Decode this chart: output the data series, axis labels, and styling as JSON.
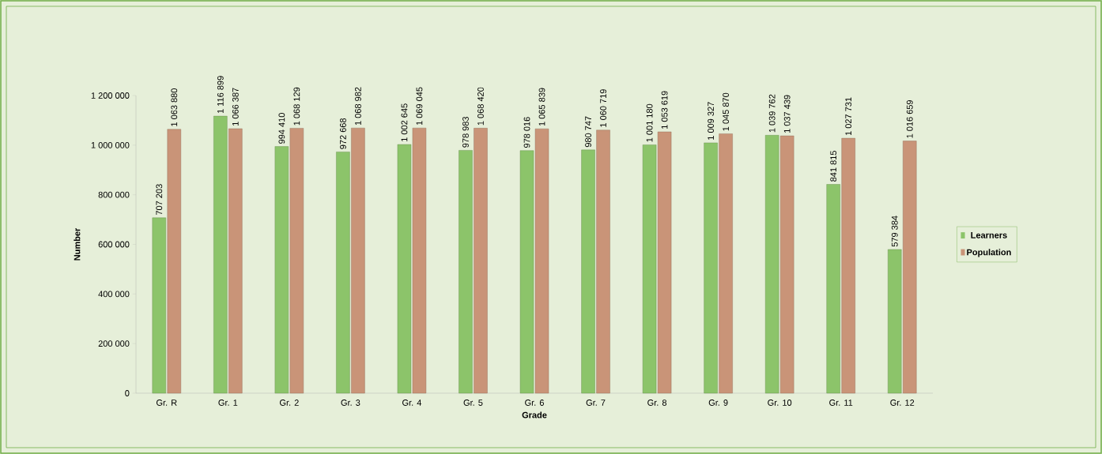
{
  "chart_data": {
    "type": "bar",
    "xlabel": "Grade",
    "ylabel": "Number",
    "categories": [
      "Gr. R",
      "Gr. 1",
      "Gr. 2",
      "Gr. 3",
      "Gr. 4",
      "Gr. 5",
      "Gr. 6",
      "Gr. 7",
      "Gr. 8",
      "Gr. 9",
      "Gr. 10",
      "Gr. 11",
      "Gr. 12"
    ],
    "series": [
      {
        "name": "Learners",
        "color": "#8cc46a",
        "values": [
          707203,
          1116899,
          994410,
          972668,
          1002645,
          978983,
          978016,
          980747,
          1001180,
          1009327,
          1039762,
          841815,
          579384
        ],
        "value_labels": [
          "707 203",
          "1 116 899",
          "994 410",
          "972 668",
          "1 002 645",
          "978 983",
          "978 016",
          "980 747",
          "1 001 180",
          "1 009 327",
          "1 039 762",
          "841 815",
          "579 384"
        ]
      },
      {
        "name": "Population",
        "color": "#c99478",
        "values": [
          1063880,
          1066387,
          1068129,
          1068982,
          1069045,
          1068420,
          1065839,
          1060719,
          1053619,
          1045870,
          1037439,
          1027731,
          1016659
        ],
        "value_labels": [
          "1 063 880",
          "1 066 387",
          "1 068 129",
          "1 068 982",
          "1 069 045",
          "1 068 420",
          "1 065 839",
          "1 060 719",
          "1 053 619",
          "1 045 870",
          "1 037 439",
          "1 027 731",
          "1 016 659"
        ]
      }
    ],
    "ylim": [
      0,
      1200000
    ],
    "yticks": [
      {
        "value": 0,
        "label": "0"
      },
      {
        "value": 200000,
        "label": "200 000"
      },
      {
        "value": 400000,
        "label": "400 000"
      },
      {
        "value": 600000,
        "label": "600 000"
      },
      {
        "value": 800000,
        "label": "800 000"
      },
      {
        "value": 1000000,
        "label": "1 000 000"
      },
      {
        "value": 1200000,
        "label": "1 200 000"
      }
    ],
    "legend": "right",
    "grid": false
  }
}
